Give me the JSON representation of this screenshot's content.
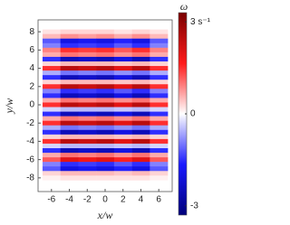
{
  "chart_data": {
    "type": "heatmap",
    "xlabel": "x/w",
    "ylabel": "y/w",
    "colorbar_label": "ω",
    "x": [
      -6,
      -4,
      -2,
      0,
      2,
      4,
      6
    ],
    "y": [
      8,
      7.5,
      7,
      6.5,
      6,
      5.5,
      5,
      4.5,
      4,
      3.5,
      3,
      2.5,
      2,
      1.5,
      1,
      0.5,
      0,
      -0.5,
      -1,
      -1.5,
      -2,
      -2.5,
      -3,
      -3.5,
      -4,
      -4.5,
      -5,
      -5.5,
      -6,
      -6.5,
      -7,
      -7.5,
      -8
    ],
    "z": [
      [
        0.2,
        0.3,
        0.3,
        0.3,
        0.2,
        0.3,
        0.2
      ],
      [
        0.5,
        0.8,
        0.7,
        0.8,
        0.6,
        0.8,
        0.5
      ],
      [
        -1.2,
        -2,
        -1.8,
        -2,
        -1.6,
        -2,
        -1.2
      ],
      [
        -0.9,
        -1.5,
        -1.4,
        -1.5,
        -1.2,
        -1.5,
        -0.9
      ],
      [
        0.9,
        1.5,
        1.4,
        1.5,
        1.2,
        1.5,
        0.9
      ],
      [
        0.6,
        1,
        0.9,
        1,
        0.8,
        1,
        0.6
      ],
      [
        -1.5,
        -2.5,
        -2.3,
        -2.5,
        -2,
        -2.5,
        -1.5
      ],
      [
        0.3,
        0.5,
        0.5,
        0.5,
        0.4,
        0.5,
        0.3
      ],
      [
        1.5,
        2.5,
        2.3,
        2.5,
        2,
        2.5,
        1.5
      ],
      [
        -0.6,
        -1,
        -0.9,
        -1,
        -0.8,
        -1,
        -0.6
      ],
      [
        -1.5,
        -2.5,
        -2.3,
        -2.5,
        -2,
        -2.5,
        -1.5
      ],
      [
        0.3,
        0.5,
        0.5,
        0.5,
        0.4,
        0.5,
        0.3
      ],
      [
        1.5,
        2.5,
        2.3,
        2.5,
        2,
        2.5,
        1.5
      ],
      [
        -0.9,
        -1.5,
        -1.4,
        -1.5,
        -1.2,
        -1.5,
        -0.9
      ],
      [
        -1.5,
        -2.5,
        -2.3,
        -2.5,
        -2,
        -2.5,
        -1.5
      ],
      [
        0.6,
        1,
        0.9,
        1,
        0.8,
        1,
        0.6
      ],
      [
        1.5,
        2.5,
        2.3,
        2.5,
        2,
        2.5,
        1.5
      ],
      [
        -0.3,
        -0.5,
        -0.5,
        -0.5,
        -0.4,
        -0.5,
        -0.3
      ],
      [
        -1.5,
        -2.5,
        -2.3,
        -2.5,
        -2,
        -2.5,
        -1.5
      ],
      [
        0.6,
        1,
        0.9,
        1,
        0.8,
        1,
        0.6
      ],
      [
        1.5,
        2.5,
        2.3,
        2.5,
        2,
        2.5,
        1.5
      ],
      [
        -0.6,
        -1,
        -0.9,
        -1,
        -0.8,
        -1,
        -0.6
      ],
      [
        -1.5,
        -2.5,
        -2.3,
        -2.5,
        -2,
        -2.5,
        -1.5
      ],
      [
        0.3,
        0.5,
        0.5,
        0.5,
        0.4,
        0.5,
        0.3
      ],
      [
        1.5,
        2.5,
        2.3,
        2.5,
        2,
        2.5,
        1.5
      ],
      [
        -0.3,
        -0.5,
        -0.5,
        -0.5,
        -0.4,
        -0.5,
        -0.3
      ],
      [
        -1.5,
        -2.5,
        -2.3,
        -2.5,
        -2,
        -2.5,
        -1.5
      ],
      [
        0.6,
        1,
        0.9,
        1,
        0.8,
        1,
        0.6
      ],
      [
        1.2,
        2,
        1.8,
        2,
        1.6,
        2,
        1.2
      ],
      [
        -0.9,
        -1.5,
        -1.4,
        -1.5,
        -1.2,
        -1.5,
        -0.9
      ],
      [
        -1.2,
        -2,
        -1.8,
        -2,
        -1.6,
        -2,
        -1.2
      ],
      [
        0.3,
        0.5,
        0.5,
        0.5,
        0.4,
        0.5,
        0.3
      ],
      [
        0.1,
        0.2,
        0.2,
        0.2,
        0.2,
        0.2,
        0.1
      ]
    ],
    "cell_width": 2,
    "cell_height": 0.5,
    "xlim": [
      -7.5,
      7.5
    ],
    "ylim": [
      -9.5,
      9.3
    ],
    "xticks": [
      -6,
      -4,
      -2,
      0,
      2,
      4,
      6
    ],
    "yticks": [
      -8,
      -6,
      -4,
      -2,
      0,
      2,
      4,
      6,
      8
    ],
    "clim": [
      -3.3,
      3.3
    ],
    "cticks": [
      {
        "value": 3,
        "label": "3 s⁻¹"
      },
      0,
      -3
    ],
    "colormap": [
      "#00007a",
      "#1a1aff",
      "#ffffff",
      "#ff1a1a",
      "#7a0000"
    ]
  }
}
